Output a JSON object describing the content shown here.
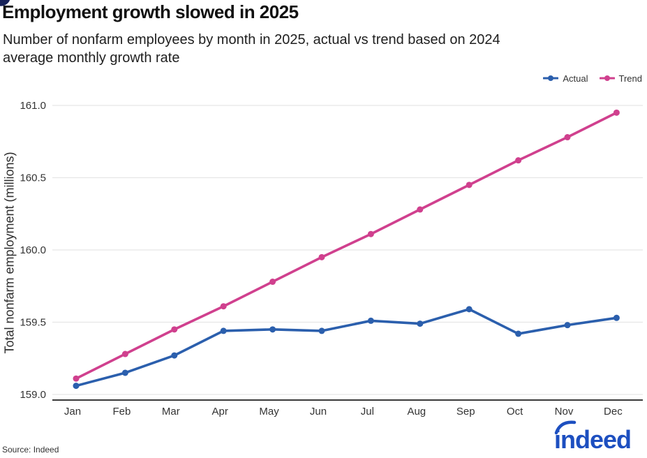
{
  "chart_data": {
    "type": "line",
    "title": "Employment growth slowed in 2025",
    "subtitle_lines": [
      "Number of nonfarm employees by month in 2025, actual vs trend based on 2024",
      "average monthly growth rate"
    ],
    "categories": [
      "Jan",
      "Feb",
      "Mar",
      "Apr",
      "May",
      "Jun",
      "Jul",
      "Aug",
      "Sep",
      "Oct",
      "Nov",
      "Dec"
    ],
    "series": [
      {
        "name": "Actual",
        "color": "#2b5fad",
        "values": [
          159.06,
          159.15,
          159.27,
          159.44,
          159.45,
          159.44,
          159.51,
          159.49,
          159.59,
          159.42,
          159.48,
          159.53
        ]
      },
      {
        "name": "Trend",
        "color": "#d0408e",
        "values": [
          159.11,
          159.28,
          159.45,
          159.61,
          159.78,
          159.95,
          160.11,
          160.28,
          160.45,
          160.62,
          160.78,
          160.95
        ]
      }
    ],
    "ylabel": "Total nonfarm employment (millions)",
    "yticks": [
      "159.0",
      "159.5",
      "160.0",
      "160.5",
      "161.0"
    ],
    "ylim": [
      158.96,
      161.05
    ],
    "grid": "horizontal",
    "legend_position": "top-right"
  },
  "footer": {
    "source": "Source: Indeed",
    "logo_text": "indeed",
    "logo_color": "#1d4fc0"
  },
  "colors": {
    "grid": "#e6e6e6",
    "axis": "#3a3a3a",
    "tick_text": "#333333",
    "corner_artifact": "#18235a"
  }
}
